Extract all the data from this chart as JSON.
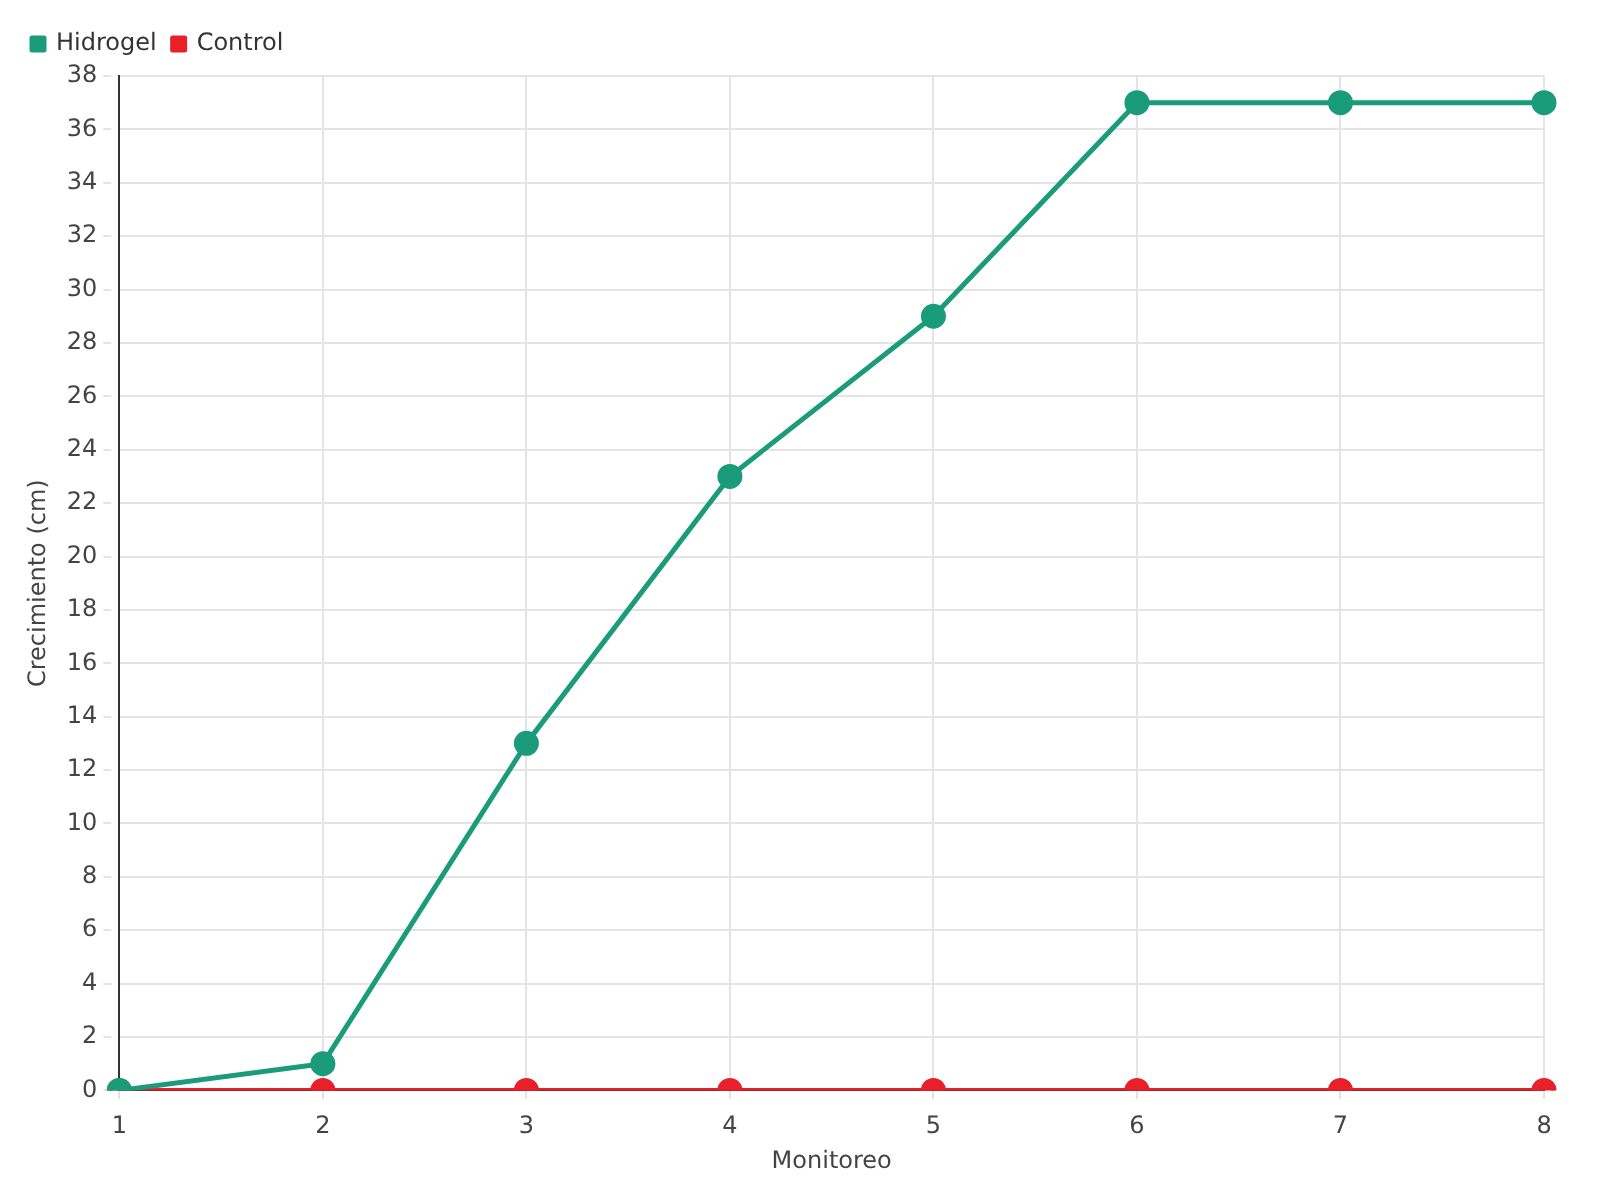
{
  "chart_data": {
    "type": "line",
    "xlabel": "Monitoreo",
    "ylabel": "Crecimiento (cm)",
    "categories": [
      "1",
      "2",
      "3",
      "4",
      "5",
      "6",
      "7",
      "8"
    ],
    "series": [
      {
        "name": "Hidrogel",
        "color": "#1a9b7a",
        "values": [
          0,
          1,
          13,
          23,
          29,
          37,
          37,
          37
        ]
      },
      {
        "name": "Control",
        "color": "#e8202a",
        "values": [
          0,
          0,
          0,
          0,
          0,
          0,
          0,
          0
        ]
      }
    ],
    "ylim": [
      0,
      38
    ],
    "yticks": [
      0,
      2,
      4,
      6,
      8,
      10,
      12,
      14,
      16,
      18,
      20,
      22,
      24,
      26,
      28,
      30,
      32,
      34,
      36,
      38
    ],
    "grid": true,
    "legend": "top left",
    "marker": "circle",
    "line_style": "solid"
  }
}
